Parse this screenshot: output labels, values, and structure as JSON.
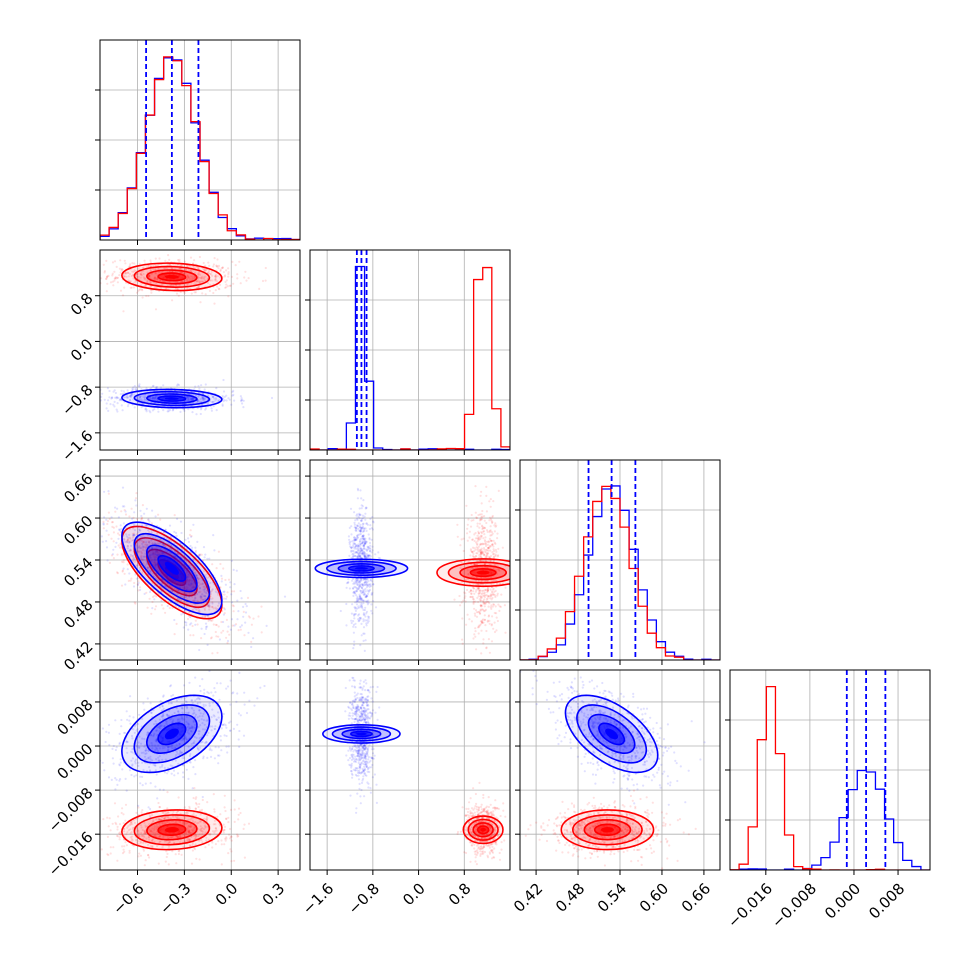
{
  "chart_data": {
    "type": "corner",
    "title": "",
    "grid": true,
    "parameters": [
      {
        "label": "",
        "range": [
          -0.84,
          0.44
        ],
        "ticks": [
          -0.6,
          -0.3,
          0.0,
          0.3
        ],
        "tick_labels": [
          "−0.6",
          "−0.3",
          "0.0",
          "0.3"
        ]
      },
      {
        "label": "",
        "range": [
          -1.9,
          1.6
        ],
        "ticks": [
          -1.6,
          -0.8,
          0.0,
          0.8
        ],
        "tick_labels": [
          "−1.6",
          "−0.8",
          "0.0",
          "0.8"
        ]
      },
      {
        "label": "",
        "range": [
          0.397,
          0.683
        ],
        "ticks": [
          0.42,
          0.48,
          0.54,
          0.6,
          0.66
        ],
        "tick_labels": [
          "0.42",
          "0.48",
          "0.54",
          "0.60",
          "0.66"
        ]
      },
      {
        "label": "",
        "range": [
          -0.0225,
          0.0138
        ],
        "ticks": [
          -0.016,
          -0.008,
          0.0,
          0.008
        ],
        "tick_labels": [
          "−0.016",
          "−0.008",
          "0.000",
          "0.008"
        ]
      }
    ],
    "series": [
      {
        "color": "#0000ff",
        "means": [
          -0.38,
          -1.0,
          0.528,
          0.0022
        ],
        "sigmas": [
          0.16,
          0.08,
          0.033,
          0.0035
        ],
        "quantile_lines": [
          [
            -0.545,
            -0.38,
            -0.21
          ],
          [
            -1.08,
            -1.0,
            -0.91
          ],
          [
            0.495,
            0.528,
            0.562
          ],
          [
            -0.0013,
            0.0022,
            0.0057
          ]
        ],
        "hist_peaks": [
          1.0,
          1.0,
          0.95,
          0.55
        ]
      },
      {
        "color": "#ff0000",
        "means": [
          -0.38,
          1.13,
          0.522,
          -0.0152
        ],
        "sigmas": [
          0.16,
          0.12,
          0.033,
          0.0018
        ],
        "quantile_lines": [],
        "hist_peaks": [
          1.0,
          1.0,
          0.95,
          1.0
        ]
      }
    ],
    "correlations": {
      "blue": {
        "0-1": -0.1,
        "0-2": -0.7,
        "0-3": 0.45,
        "1-2": 0.0,
        "1-3": 0.0,
        "2-3": -0.55
      },
      "red": {
        "0-1": -0.1,
        "0-2": -0.7,
        "0-3": 0.1,
        "1-2": 0.0,
        "1-3": 0.0,
        "2-3": 0.0
      }
    }
  }
}
